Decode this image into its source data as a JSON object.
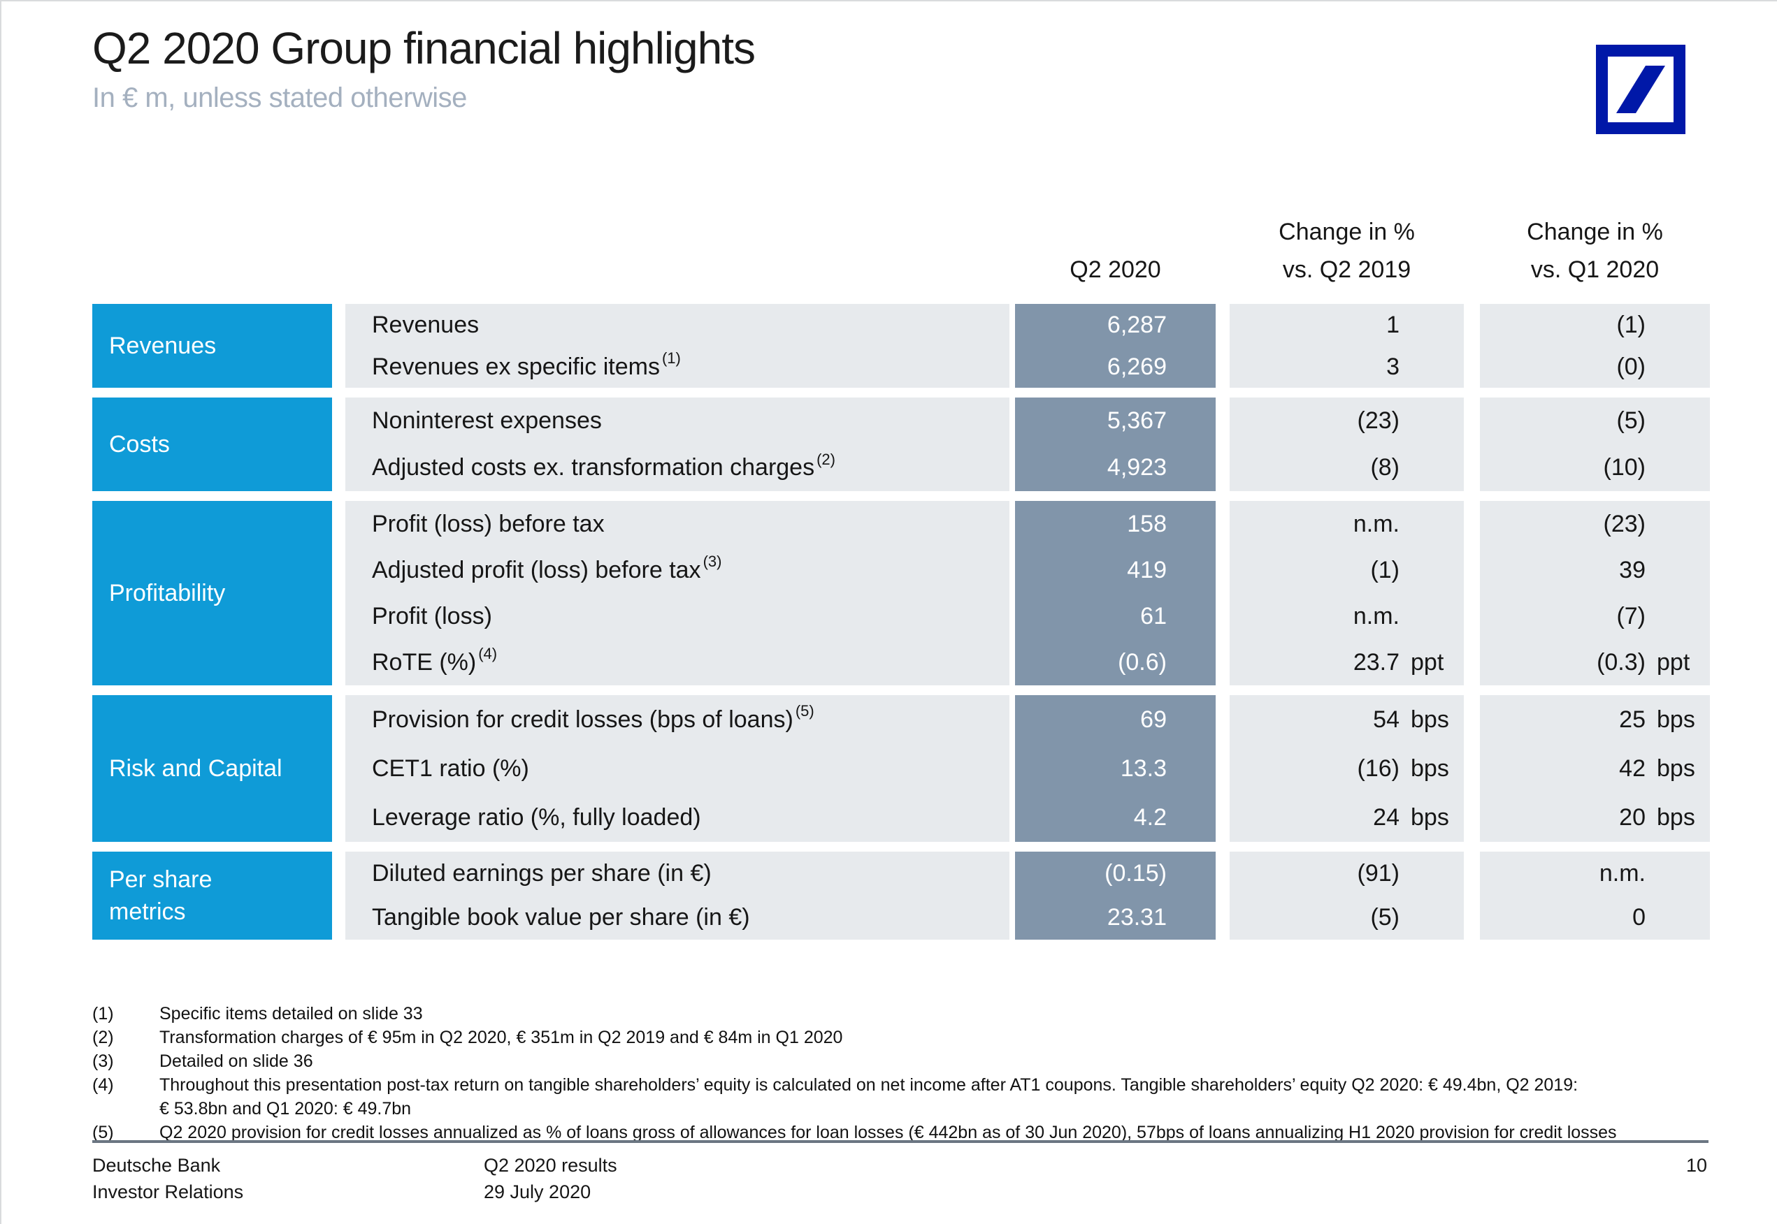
{
  "slide": {
    "title": "Q2 2020 Group financial highlights",
    "subtitle": "In € m, unless stated otherwise"
  },
  "logo": {
    "name": "deutsche-bank-logo",
    "color": "#0018A8"
  },
  "colors": {
    "category_blue": "#0F9BD7",
    "value_column_slate": "#8195AA",
    "row_gray": "#E7EAED",
    "logo_blue": "#0018A8",
    "subtitle_gray": "#A4B0BF",
    "divider_gray": "#6B7682"
  },
  "table": {
    "headers": {
      "q2": [
        "Q2 2020"
      ],
      "chg1": [
        "Change in %",
        "vs. Q2 2019"
      ],
      "chg2": [
        "Change in %",
        "vs. Q1 2020"
      ]
    },
    "groups": [
      {
        "category_lines": [
          "Revenues"
        ],
        "rows": [
          {
            "label": "Revenues",
            "sup": "",
            "q2": "6,287",
            "c1": "1",
            "c1u": "",
            "c2": "(1)",
            "c2u": ""
          },
          {
            "label": "Revenues ex specific items",
            "sup": "(1)",
            "q2": "6,269",
            "c1": "3",
            "c1u": "",
            "c2": "(0)",
            "c2u": ""
          }
        ]
      },
      {
        "category_lines": [
          "Costs"
        ],
        "rows": [
          {
            "label": "Noninterest expenses",
            "sup": "",
            "q2": "5,367",
            "c1": "(23)",
            "c1u": "",
            "c2": "(5)",
            "c2u": ""
          },
          {
            "label": "Adjusted costs ex. transformation charges",
            "sup": "(2)",
            "q2": "4,923",
            "c1": "(8)",
            "c1u": "",
            "c2": "(10)",
            "c2u": ""
          }
        ]
      },
      {
        "category_lines": [
          "Profitability"
        ],
        "rows": [
          {
            "label": "Profit (loss) before tax",
            "sup": "",
            "q2": "158",
            "c1": "n.m.",
            "c1u": "",
            "c2": "(23)",
            "c2u": ""
          },
          {
            "label": "Adjusted profit (loss) before tax",
            "sup": "(3)",
            "q2": "419",
            "c1": "(1)",
            "c1u": "",
            "c2": "39",
            "c2u": ""
          },
          {
            "label": "Profit (loss)",
            "sup": "",
            "q2": "61",
            "c1": "n.m.",
            "c1u": "",
            "c2": "(7)",
            "c2u": ""
          },
          {
            "label": "RoTE (%)",
            "sup": "(4)",
            "q2": "(0.6)",
            "c1": "23.7",
            "c1u": "ppt",
            "c2": "(0.3)",
            "c2u": "ppt"
          }
        ]
      },
      {
        "category_lines": [
          "Risk and Capital"
        ],
        "rows": [
          {
            "label": "Provision for credit losses (bps of loans)",
            "sup": "(5)",
            "q2": "69",
            "c1": "54",
            "c1u": "bps",
            "c2": "25",
            "c2u": "bps"
          },
          {
            "label": "CET1 ratio (%)",
            "sup": "",
            "q2": "13.3",
            "c1": "(16)",
            "c1u": "bps",
            "c2": "42",
            "c2u": "bps"
          },
          {
            "label": "Leverage ratio (%, fully loaded)",
            "sup": "",
            "q2": "4.2",
            "c1": "24",
            "c1u": "bps",
            "c2": "20",
            "c2u": "bps"
          }
        ]
      },
      {
        "category_lines": [
          "Per share",
          "metrics"
        ],
        "rows": [
          {
            "label": "Diluted earnings per share (in €)",
            "sup": "",
            "q2": "(0.15)",
            "c1": "(91)",
            "c1u": "",
            "c2": "n.m.",
            "c2u": ""
          },
          {
            "label": "Tangible book value per share (in €)",
            "sup": "",
            "q2": "23.31",
            "c1": "(5)",
            "c1u": "",
            "c2": "0",
            "c2u": ""
          }
        ]
      }
    ]
  },
  "footnotes": [
    {
      "num": "(1)",
      "lines": [
        "Specific items detailed on slide 33"
      ]
    },
    {
      "num": "(2)",
      "lines": [
        "Transformation charges of € 95m in Q2 2020, € 351m in Q2 2019 and € 84m in Q1 2020"
      ]
    },
    {
      "num": "(3)",
      "lines": [
        "Detailed on slide 36"
      ]
    },
    {
      "num": "(4)",
      "lines": [
        "Throughout this presentation post-tax return on tangible shareholders’ equity is calculated on net income after AT1 coupons. Tangible shareholders’ equity Q2 2020: € 49.4bn, Q2 2019:",
        "€ 53.8bn and Q1 2020: € 49.7bn"
      ]
    },
    {
      "num": "(5)",
      "lines": [
        "Q2 2020 provision for credit losses annualized as % of loans gross of allowances for loan losses (€ 442bn as of 30 Jun 2020), 57bps of loans annualizing H1 2020 provision for credit losses"
      ]
    }
  ],
  "footer": {
    "left_lines": [
      "Deutsche Bank",
      "Investor Relations"
    ],
    "center_lines": [
      "Q2 2020 results",
      "29 July 2020"
    ],
    "page": "10"
  }
}
